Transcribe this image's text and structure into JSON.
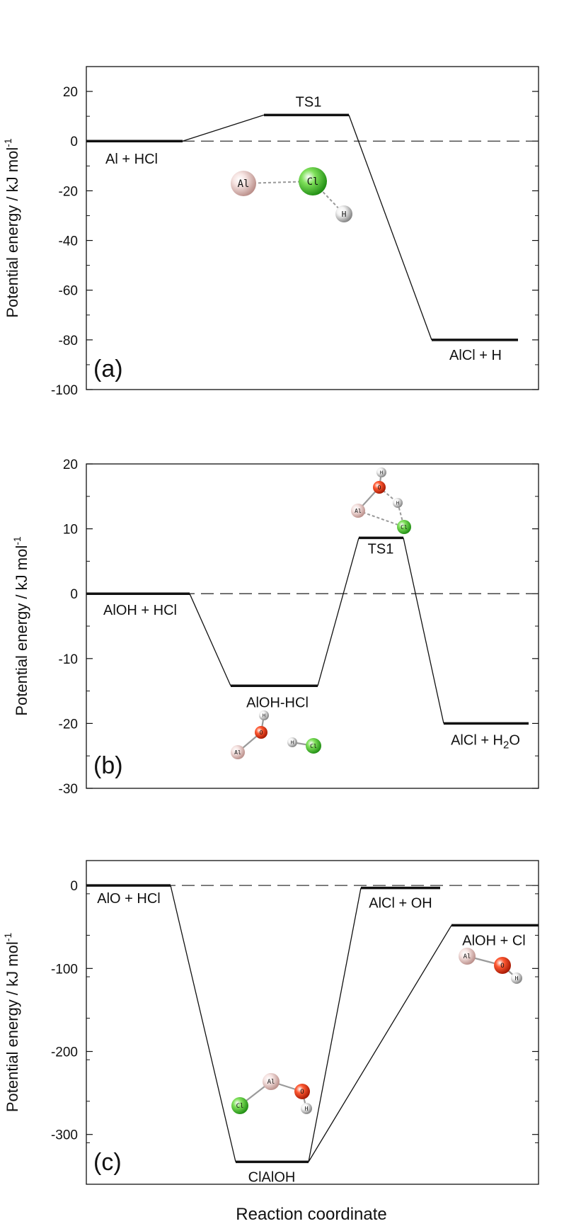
{
  "chart_data": [
    {
      "type": "energy-level-diagram",
      "panel_label": "(a)",
      "ylabel": "Potential energy / kJ mol",
      "ylabel_sup": "-1",
      "ylim": [
        -100,
        30
      ],
      "yticks": [
        20,
        0,
        -20,
        -40,
        -60,
        -80,
        -100
      ],
      "levels": [
        {
          "name": "Al + HCl",
          "energy": 0
        },
        {
          "name": "TS1",
          "energy": 10.5
        },
        {
          "name": "AlCl + H",
          "energy": -80
        }
      ],
      "molecule_atoms": [
        "Al",
        "Cl",
        "H"
      ]
    },
    {
      "type": "energy-level-diagram",
      "panel_label": "(b)",
      "ylabel": "Potential energy / kJ mol",
      "ylabel_sup": "-1",
      "ylim": [
        -30,
        20
      ],
      "yticks": [
        20,
        10,
        0,
        -10,
        -20,
        -30
      ],
      "levels": [
        {
          "name": "AlOH + HCl",
          "energy": 0
        },
        {
          "name": "AlOH-HCl",
          "energy": -14.2
        },
        {
          "name": "TS1",
          "energy": 8.6
        },
        {
          "name": "AlCl + H",
          "name_sub": "2",
          "name_end": "O",
          "energy": -20
        }
      ],
      "molecule_atoms": [
        "H",
        "O",
        "Al",
        "Cl"
      ]
    },
    {
      "type": "energy-level-diagram",
      "panel_label": "(c)",
      "ylabel": "Potential energy / kJ mol",
      "ylabel_sup": "-1",
      "ylim": [
        -360,
        30
      ],
      "yticks": [
        0,
        -100,
        -200,
        -300
      ],
      "levels": [
        {
          "name": "AlO + HCl",
          "energy": 0
        },
        {
          "name": "ClAlOH",
          "energy": -333
        },
        {
          "name": "AlCl + OH",
          "energy": -3
        },
        {
          "name": "AlOH + Cl",
          "energy": -48
        }
      ],
      "molecule_atoms": [
        "Al",
        "O",
        "H",
        "Cl"
      ]
    }
  ],
  "xlabel": "Reaction coordinate"
}
